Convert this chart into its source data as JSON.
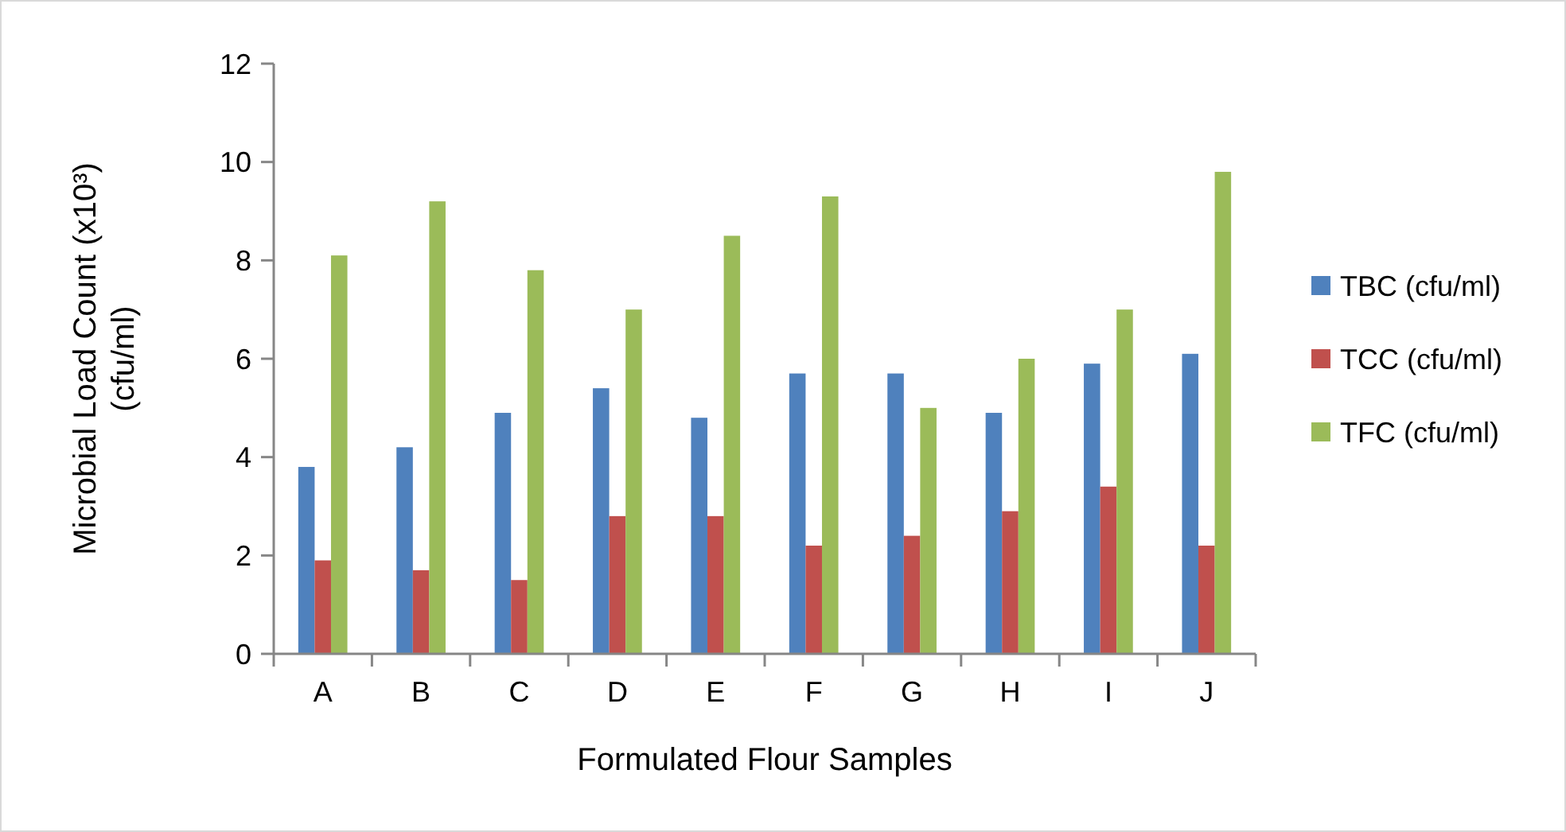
{
  "chart_data": {
    "type": "bar",
    "xlabel": "Formulated Flour Samples",
    "ylabel": "Microbial Load Count (x10³)\n(cfu/ml)",
    "categories": [
      "A",
      "B",
      "C",
      "D",
      "E",
      "F",
      "G",
      "H",
      "I",
      "J"
    ],
    "series": [
      {
        "name": "TBC (cfu/ml)",
        "color": "#4f81bd",
        "values": [
          3.8,
          4.2,
          4.9,
          5.4,
          4.8,
          5.7,
          5.7,
          4.9,
          5.9,
          6.1
        ]
      },
      {
        "name": "TCC (cfu/ml)",
        "color": "#c0504d",
        "values": [
          1.9,
          1.7,
          1.5,
          2.8,
          2.8,
          2.2,
          2.4,
          2.9,
          3.4,
          2.2
        ]
      },
      {
        "name": "TFC (cfu/ml)",
        "color": "#9bbb59",
        "values": [
          8.1,
          9.2,
          7.8,
          7.0,
          8.5,
          9.3,
          5.0,
          6.0,
          7.0,
          9.8
        ]
      }
    ],
    "ylim": [
      0,
      12
    ],
    "yticks": [
      0,
      2,
      4,
      6,
      8,
      10,
      12
    ],
    "grid": false,
    "legend": "right"
  }
}
